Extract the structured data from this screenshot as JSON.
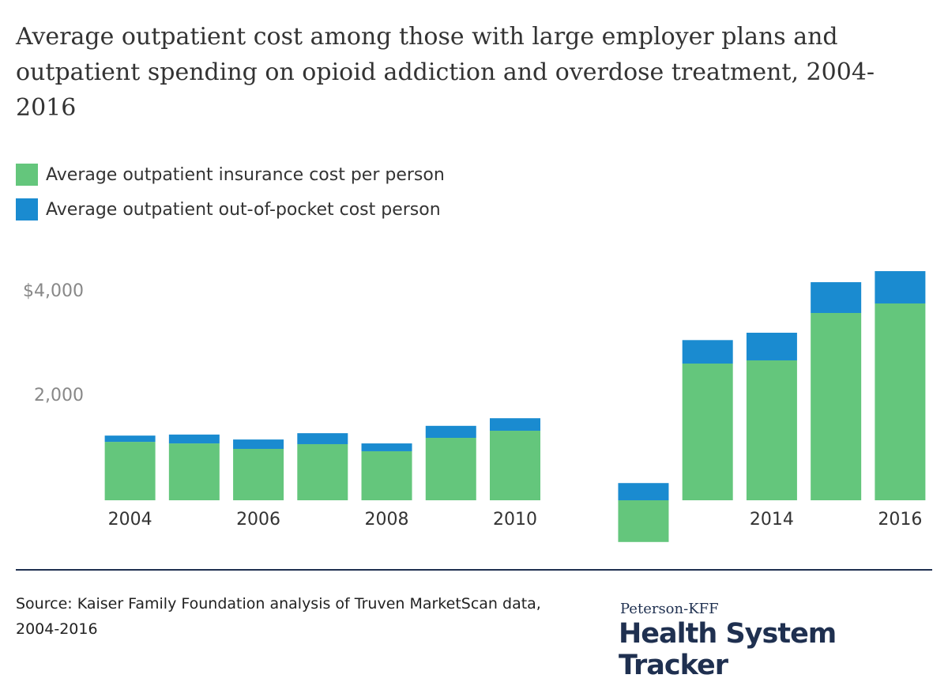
{
  "chart_data": {
    "type": "bar",
    "stacked": true,
    "title": "Average outpatient cost among those with large employer plans and outpatient spending on opioid addiction and overdose treatment, 2004-2016",
    "categories": [
      "2004",
      null,
      "2006",
      null,
      "2008",
      null,
      "2010",
      null,
      null,
      null,
      "2014",
      null,
      "2016"
    ],
    "series": [
      {
        "name": "Average outpatient insurance cost per person",
        "color": "#64c67c",
        "values": [
          1120,
          1090,
          985,
          1076,
          940,
          1197,
          1333,
          null,
          -800,
          2621,
          2682,
          3591,
          3773
        ]
      },
      {
        "name": "Average outpatient out-of-pocket cost person",
        "color": "#1a8bd0",
        "values": [
          120,
          170,
          180,
          210,
          150,
          230,
          240,
          null,
          330,
          450,
          530,
          590,
          620
        ]
      }
    ],
    "ylim": [
      -900,
      4500
    ],
    "yticks": [
      {
        "value": 2000,
        "label": "2,000"
      },
      {
        "value": 4000,
        "label": "$4,000"
      }
    ],
    "grid": false,
    "legend": "top-left",
    "source": "Source: Kaiser Family Foundation analysis of Truven MarketScan data, 2004-2016",
    "brand": {
      "kicker": "Peterson-KFF",
      "name": "Health System Tracker"
    }
  }
}
